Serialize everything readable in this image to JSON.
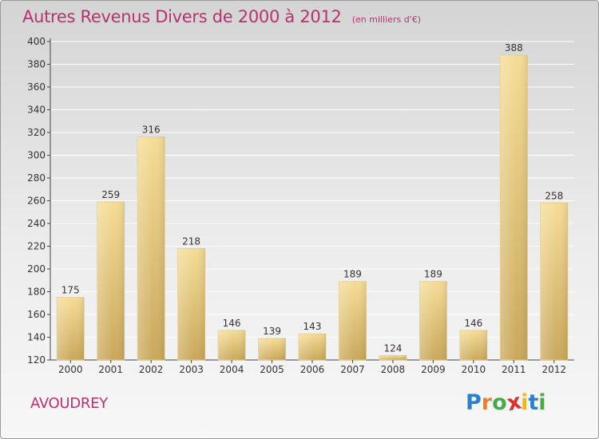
{
  "header": {
    "title": "Autres Revenus Divers de 2000 à 2012",
    "unit": "(en milliers d'€)"
  },
  "town": "AVOUDREY",
  "logo": {
    "letters": [
      "P",
      "r",
      "o",
      "x",
      "i",
      "t",
      "i"
    ],
    "colors": [
      "#2f7fc8",
      "#e8822a",
      "#4aa84a",
      "#d8332f",
      "#e8b82a",
      "#2f7fc8",
      "#4aa84a"
    ]
  },
  "colors": {
    "bar_light": "#f5dc96",
    "bar_dark": "#c9a85c",
    "title": "#b8326f"
  },
  "chart_data": {
    "type": "bar",
    "categories": [
      "2000",
      "2001",
      "2002",
      "2003",
      "2004",
      "2005",
      "2006",
      "2007",
      "2008",
      "2009",
      "2010",
      "2011",
      "2012"
    ],
    "values": [
      175,
      259,
      316,
      218,
      146,
      139,
      143,
      189,
      124,
      189,
      146,
      388,
      258
    ],
    "yticks": [
      120,
      140,
      160,
      180,
      200,
      220,
      240,
      260,
      280,
      300,
      320,
      340,
      360,
      380,
      400
    ],
    "ylim": [
      120,
      400
    ],
    "grid": true,
    "xlabel": "",
    "ylabel": ""
  }
}
